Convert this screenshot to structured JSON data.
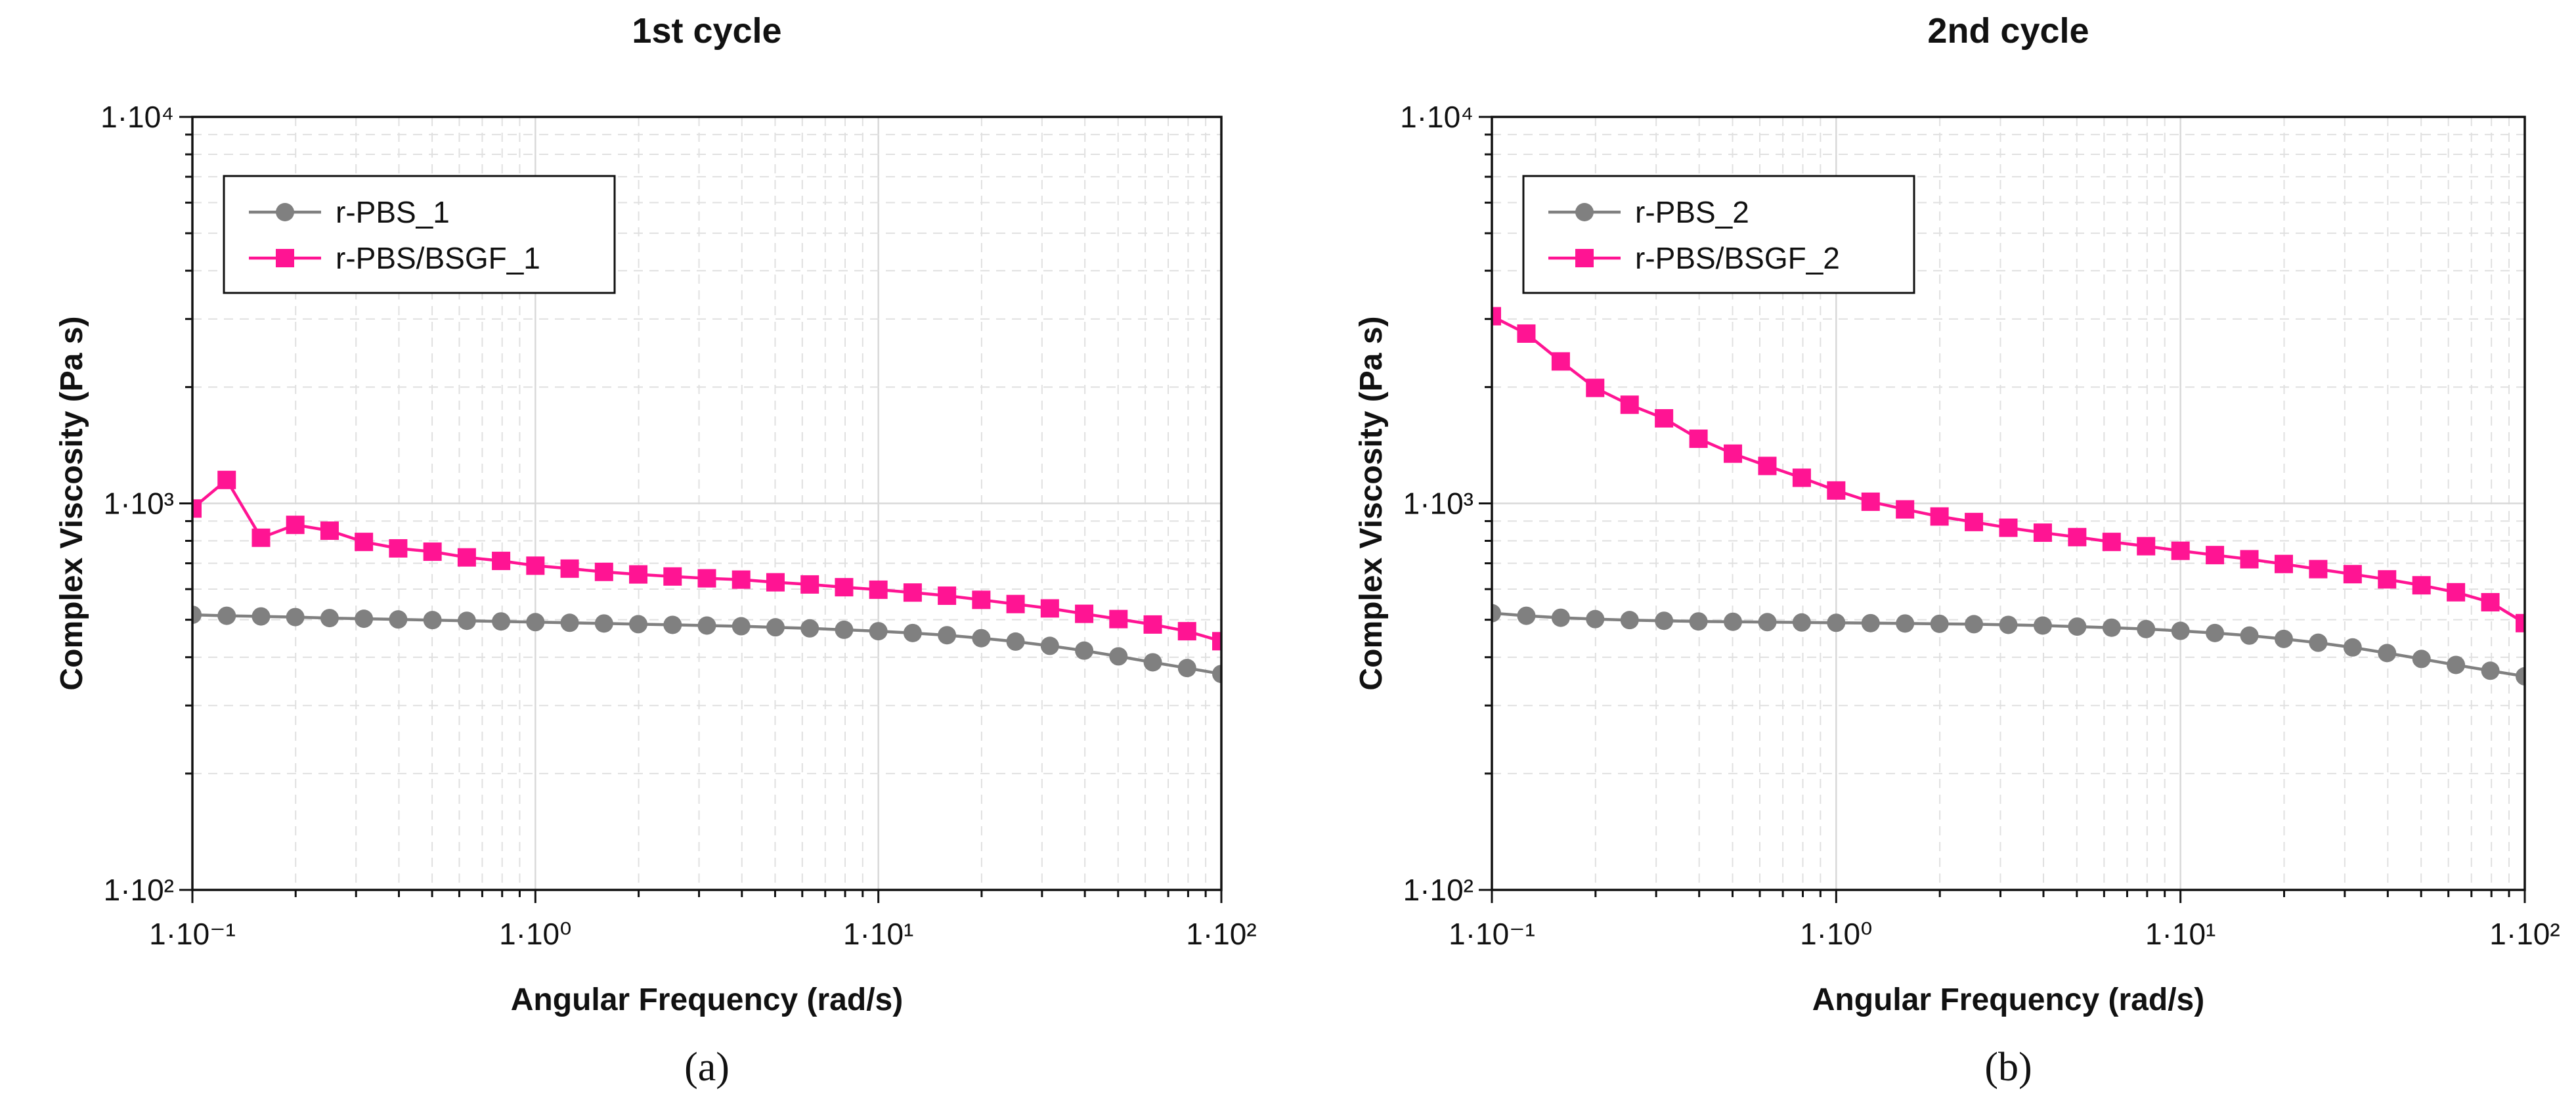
{
  "colors": {
    "gray_series": "#808080",
    "magenta_series": "#ff1493",
    "major_grid": "#d9d9d9",
    "minor_grid": "#e0e0e0",
    "axis": "#111111"
  },
  "chart_data": [
    {
      "type": "line",
      "panel_label": "(a)",
      "title": "1st cycle",
      "xlabel": "Angular Frequency (rad/s)",
      "ylabel": "Complex Viscosity (Pa s)",
      "xscale": "log",
      "yscale": "log",
      "xlim": [
        0.1,
        100
      ],
      "ylim": [
        100,
        10000
      ],
      "grid": true,
      "legend_position": "top-left",
      "x_tick_labels": [
        "1·10⁻¹",
        "1·10⁰",
        "1·10¹",
        "1·10²"
      ],
      "y_tick_labels": [
        "1·10²",
        "1·10³",
        "1·10⁴"
      ],
      "x": [
        0.1,
        0.1259,
        0.1585,
        0.1995,
        0.2512,
        0.3162,
        0.3981,
        0.5012,
        0.631,
        0.7943,
        1.0,
        1.2589,
        1.5849,
        1.9953,
        2.5119,
        3.1623,
        3.9811,
        5.0119,
        6.3096,
        7.9433,
        10.0,
        12.589,
        15.849,
        19.953,
        25.119,
        31.623,
        39.811,
        50.119,
        63.096,
        79.433,
        100.0
      ],
      "series": [
        {
          "name": "r-PBS_1",
          "marker": "circle",
          "color": "#808080",
          "values": [
            515,
            512,
            510,
            508,
            505,
            503,
            501,
            499,
            497,
            495,
            493,
            491,
            489,
            487,
            485,
            483,
            481,
            478,
            475,
            471,
            467,
            462,
            456,
            448,
            439,
            428,
            416,
            402,
            388,
            375,
            362
          ]
        },
        {
          "name": "r-PBS/BSGF_1",
          "marker": "square",
          "color": "#ff1493",
          "values": [
            970,
            1150,
            815,
            880,
            850,
            795,
            765,
            750,
            725,
            710,
            690,
            678,
            665,
            655,
            647,
            640,
            635,
            625,
            617,
            607,
            598,
            588,
            577,
            563,
            549,
            535,
            518,
            502,
            486,
            467,
            440
          ]
        }
      ]
    },
    {
      "type": "line",
      "panel_label": "(b)",
      "title": "2nd cycle",
      "xlabel": "Angular Frequency (rad/s)",
      "ylabel": "Complex Viscosity (Pa s)",
      "xscale": "log",
      "yscale": "log",
      "xlim": [
        0.1,
        100
      ],
      "ylim": [
        100,
        10000
      ],
      "grid": true,
      "legend_position": "top-left",
      "x_tick_labels": [
        "1·10⁻¹",
        "1·10⁰",
        "1·10¹",
        "1·10²"
      ],
      "y_tick_labels": [
        "1·10²",
        "1·10³",
        "1·10⁴"
      ],
      "x": [
        0.1,
        0.1259,
        0.1585,
        0.1995,
        0.2512,
        0.3162,
        0.3981,
        0.5012,
        0.631,
        0.7943,
        1.0,
        1.2589,
        1.5849,
        1.9953,
        2.5119,
        3.1623,
        3.9811,
        5.0119,
        6.3096,
        7.9433,
        10.0,
        12.589,
        15.849,
        19.953,
        25.119,
        31.623,
        39.811,
        50.119,
        63.096,
        79.433,
        100.0
      ],
      "series": [
        {
          "name": "r-PBS_2",
          "marker": "circle",
          "color": "#808080",
          "values": [
            520,
            512,
            506,
            502,
            499,
            497,
            495,
            494,
            493,
            492,
            491,
            490,
            489,
            488,
            487,
            485,
            483,
            480,
            477,
            473,
            468,
            462,
            455,
            446,
            436,
            424,
            410,
            396,
            382,
            369,
            357
          ]
        },
        {
          "name": "r-PBS/BSGF_2",
          "marker": "square",
          "color": "#ff1493",
          "values": [
            3050,
            2750,
            2330,
            1990,
            1800,
            1660,
            1470,
            1345,
            1250,
            1165,
            1080,
            1010,
            965,
            925,
            895,
            865,
            840,
            818,
            795,
            775,
            754,
            735,
            717,
            697,
            676,
            656,
            636,
            614,
            589,
            555,
            490
          ]
        }
      ]
    }
  ]
}
